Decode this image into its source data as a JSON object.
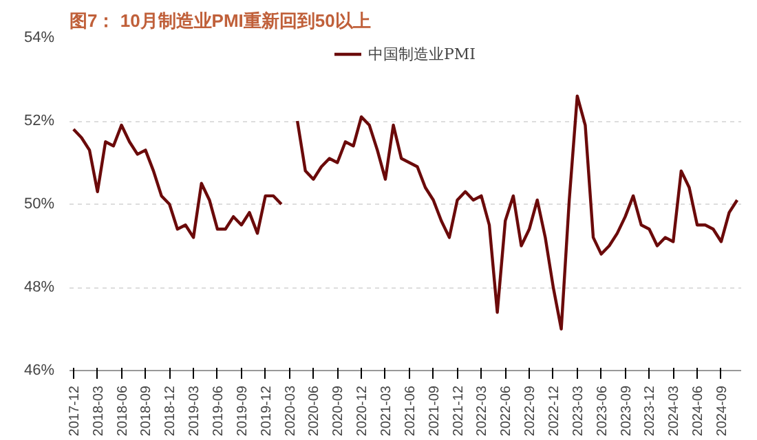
{
  "chart_data": {
    "type": "line",
    "title": "图7： 10月制造业PMI重新回到50以上",
    "categories": [
      "2017-12",
      null,
      null,
      "2018-03",
      null,
      null,
      "2018-06",
      null,
      null,
      "2018-09",
      null,
      null,
      "2018-12",
      null,
      null,
      "2019-03",
      null,
      null,
      "2019-06",
      null,
      null,
      "2019-09",
      null,
      null,
      "2019-12",
      null,
      null,
      "2020-03",
      null,
      null,
      "2020-06",
      null,
      null,
      "2020-09",
      null,
      null,
      "2020-12",
      null,
      null,
      "2021-03",
      null,
      null,
      "2021-06",
      null,
      null,
      "2021-09",
      null,
      null,
      "2021-12",
      null,
      null,
      "2022-03",
      null,
      null,
      "2022-06",
      null,
      null,
      "2022-09",
      null,
      null,
      "2022-12",
      null,
      null,
      "2023-03",
      null,
      null,
      "2023-06",
      null,
      null,
      "2023-09",
      null,
      null,
      "2023-12",
      null,
      null,
      "2024-03",
      null,
      null,
      "2024-06",
      null,
      null,
      "2024-09",
      null,
      null
    ],
    "series": [
      {
        "name": "中国制造业PMI",
        "color": "#6b0a0a",
        "values": [
          51.8,
          51.6,
          51.3,
          50.3,
          51.5,
          51.4,
          51.9,
          51.5,
          51.2,
          51.3,
          50.8,
          50.2,
          50.0,
          49.4,
          49.5,
          49.2,
          50.5,
          50.1,
          49.4,
          49.4,
          49.7,
          49.5,
          49.8,
          49.3,
          50.2,
          50.2,
          50.0,
          null,
          52.0,
          50.8,
          50.6,
          50.9,
          51.1,
          51.0,
          51.5,
          51.4,
          52.1,
          51.9,
          51.3,
          50.6,
          51.9,
          51.1,
          51.0,
          50.9,
          50.4,
          50.1,
          49.6,
          49.2,
          50.1,
          50.3,
          50.1,
          50.2,
          49.5,
          47.4,
          49.6,
          50.2,
          49.0,
          49.4,
          50.1,
          49.2,
          48.0,
          47.0,
          50.1,
          52.6,
          51.9,
          49.2,
          48.8,
          49.0,
          49.3,
          49.7,
          50.2,
          49.5,
          49.4,
          49.0,
          49.2,
          49.1,
          50.8,
          50.4,
          49.5,
          49.5,
          49.4,
          49.1,
          49.8,
          50.1
        ]
      }
    ],
    "ylim": [
      46,
      54
    ],
    "yticks": [
      {
        "value": 46,
        "label": "46%"
      },
      {
        "value": 48,
        "label": "48%"
      },
      {
        "value": 50,
        "label": "50%"
      },
      {
        "value": 52,
        "label": "52%"
      },
      {
        "value": 54,
        "label": "54%"
      }
    ],
    "grid": "y",
    "legend": "top",
    "marker": "none",
    "line_style": "solid"
  }
}
